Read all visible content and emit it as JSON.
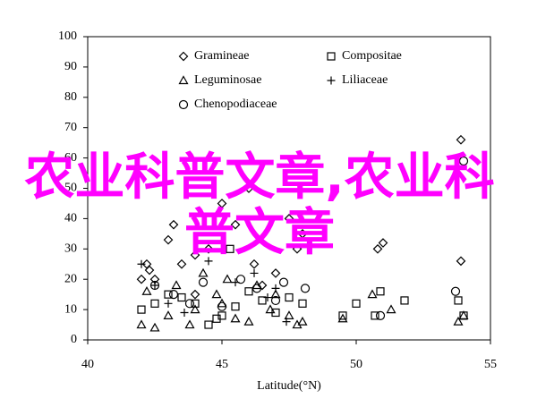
{
  "chart_data": {
    "type": "scatter",
    "xlabel": "Latitude(°N)",
    "xlim": [
      40,
      55
    ],
    "xticks": [
      40,
      45,
      50,
      55
    ],
    "ylim": [
      0,
      100
    ],
    "yticks": [
      0,
      10,
      20,
      30,
      40,
      50,
      60,
      70,
      80,
      90,
      100
    ],
    "grid": false,
    "legend": "upper left",
    "series": [
      {
        "name": "Gramineae",
        "marker": "diamond",
        "color": "#000000",
        "x": [
          42.2,
          42.3,
          42.5,
          43,
          43.2,
          43.5,
          44,
          44.5,
          45,
          45.5,
          46,
          46.2,
          46.5,
          47,
          47.5,
          47.8,
          48,
          50.8,
          51,
          53.9,
          53.9,
          42,
          44
        ],
        "values": [
          25,
          23,
          20,
          33,
          38,
          25,
          28,
          30,
          45,
          38,
          50,
          25,
          18,
          22,
          40,
          30,
          35,
          30,
          32,
          66,
          26,
          20,
          15
        ]
      },
      {
        "name": "Compositae",
        "marker": "square",
        "color": "#000000",
        "x": [
          42,
          42.5,
          43,
          43.5,
          44,
          44.5,
          44.8,
          45,
          45.5,
          46,
          46.5,
          47,
          47.5,
          48,
          49.5,
          50,
          50.7,
          50.9,
          51.8,
          53.8,
          54,
          45.3
        ],
        "values": [
          10,
          12,
          15,
          14,
          12,
          5,
          7,
          8,
          11,
          16,
          13,
          9,
          14,
          12,
          8,
          12,
          8,
          16,
          13,
          13,
          8,
          30
        ]
      },
      {
        "name": "Leguminosae",
        "marker": "triangle",
        "color": "#000000",
        "x": [
          42,
          42.2,
          42.5,
          43,
          43.3,
          43.8,
          44,
          44.3,
          44.8,
          45,
          45.2,
          45.5,
          46,
          46.3,
          46.8,
          47,
          47.5,
          47.8,
          48,
          49.5,
          50.6,
          51.3,
          53.8,
          54
        ],
        "values": [
          5,
          16,
          4,
          8,
          18,
          5,
          10,
          22,
          15,
          12,
          20,
          7,
          6,
          18,
          10,
          15,
          8,
          5,
          6,
          7,
          15,
          10,
          6,
          8
        ]
      },
      {
        "name": "Liliaceae",
        "marker": "plus",
        "color": "#000000",
        "x": [
          42,
          42.5,
          43,
          44.5,
          45.5,
          46.2,
          46.7,
          47.4,
          47,
          43.6
        ],
        "values": [
          25,
          18,
          12,
          26,
          19,
          22,
          14,
          6,
          17,
          9
        ]
      },
      {
        "name": "Chenopodiaceae",
        "marker": "circle",
        "color": "#000000",
        "x": [
          42.5,
          43.2,
          43.8,
          44.3,
          45,
          45.7,
          46.3,
          47,
          47.3,
          48.1,
          50.9,
          53.7,
          54
        ],
        "values": [
          18,
          15,
          12,
          19,
          11,
          20,
          17,
          13,
          19,
          17,
          8,
          16,
          59
        ]
      }
    ]
  },
  "overlay_text": "农业科普文章,农业科普文章"
}
